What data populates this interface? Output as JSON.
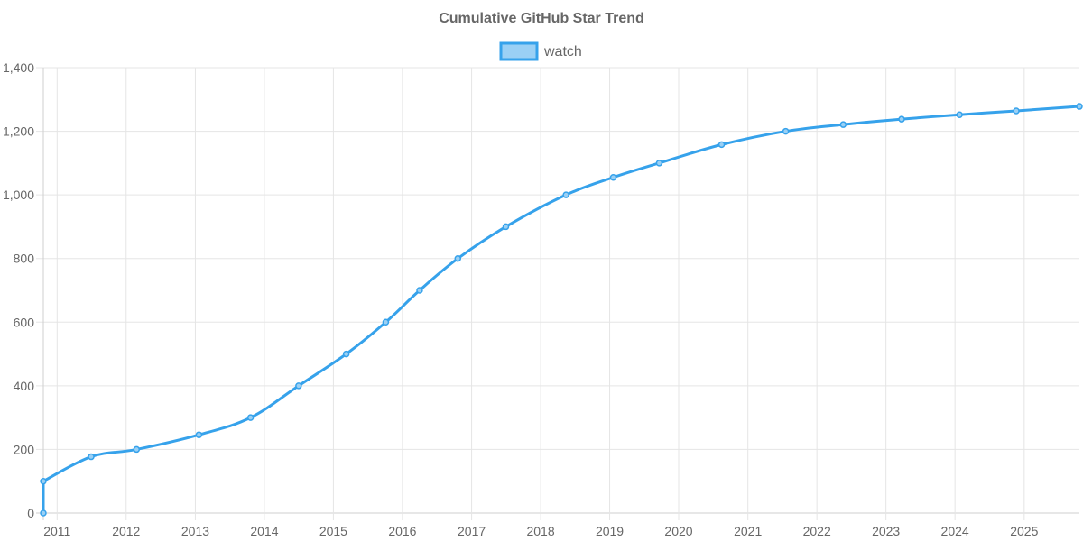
{
  "chart_data": {
    "type": "line",
    "title": "Cumulative GitHub Star Trend",
    "xlabel": "",
    "ylabel": "",
    "legend_position": "top-center",
    "grid": true,
    "x_axis_type": "date",
    "xlim": [
      "2010-10-20",
      "2025-10-20"
    ],
    "ylim": [
      0,
      1400
    ],
    "y_ticks": [
      0,
      200,
      400,
      600,
      800,
      1000,
      1200,
      1400
    ],
    "y_tick_labels": [
      "0",
      "200",
      "400",
      "600",
      "800",
      "1,000",
      "1,200",
      "1,400"
    ],
    "x_ticks": [
      "2011-01-01",
      "2012-01-01",
      "2013-01-01",
      "2014-01-01",
      "2015-01-01",
      "2016-01-01",
      "2017-01-01",
      "2018-01-01",
      "2019-01-01",
      "2020-01-01",
      "2021-01-01",
      "2022-01-01",
      "2023-01-01",
      "2024-01-01",
      "2025-01-01"
    ],
    "x_tick_labels": [
      "2011",
      "2012",
      "2013",
      "2014",
      "2015",
      "2016",
      "2017",
      "2018",
      "2019",
      "2020",
      "2021",
      "2022",
      "2023",
      "2024",
      "2025"
    ],
    "series": [
      {
        "name": "watch",
        "color": "#36a2eb",
        "fill_color": "#9ad0f5",
        "points": [
          {
            "x": "2010-10-20",
            "y": 0
          },
          {
            "x": "2010-10-20",
            "y": 100
          },
          {
            "x": "2011-06-30",
            "y": 177
          },
          {
            "x": "2012-02-25",
            "y": 200
          },
          {
            "x": "2013-01-20",
            "y": 246
          },
          {
            "x": "2013-10-20",
            "y": 300
          },
          {
            "x": "2014-07-01",
            "y": 400
          },
          {
            "x": "2015-03-10",
            "y": 500
          },
          {
            "x": "2015-10-05",
            "y": 600
          },
          {
            "x": "2016-04-01",
            "y": 700
          },
          {
            "x": "2016-10-20",
            "y": 800
          },
          {
            "x": "2017-07-01",
            "y": 900
          },
          {
            "x": "2018-05-15",
            "y": 1000
          },
          {
            "x": "2019-01-20",
            "y": 1055
          },
          {
            "x": "2019-09-20",
            "y": 1100
          },
          {
            "x": "2020-08-15",
            "y": 1158
          },
          {
            "x": "2021-07-20",
            "y": 1200
          },
          {
            "x": "2022-05-20",
            "y": 1221
          },
          {
            "x": "2023-03-25",
            "y": 1238
          },
          {
            "x": "2024-01-25",
            "y": 1252
          },
          {
            "x": "2024-11-20",
            "y": 1264
          },
          {
            "x": "2025-10-20",
            "y": 1278
          }
        ]
      }
    ]
  }
}
